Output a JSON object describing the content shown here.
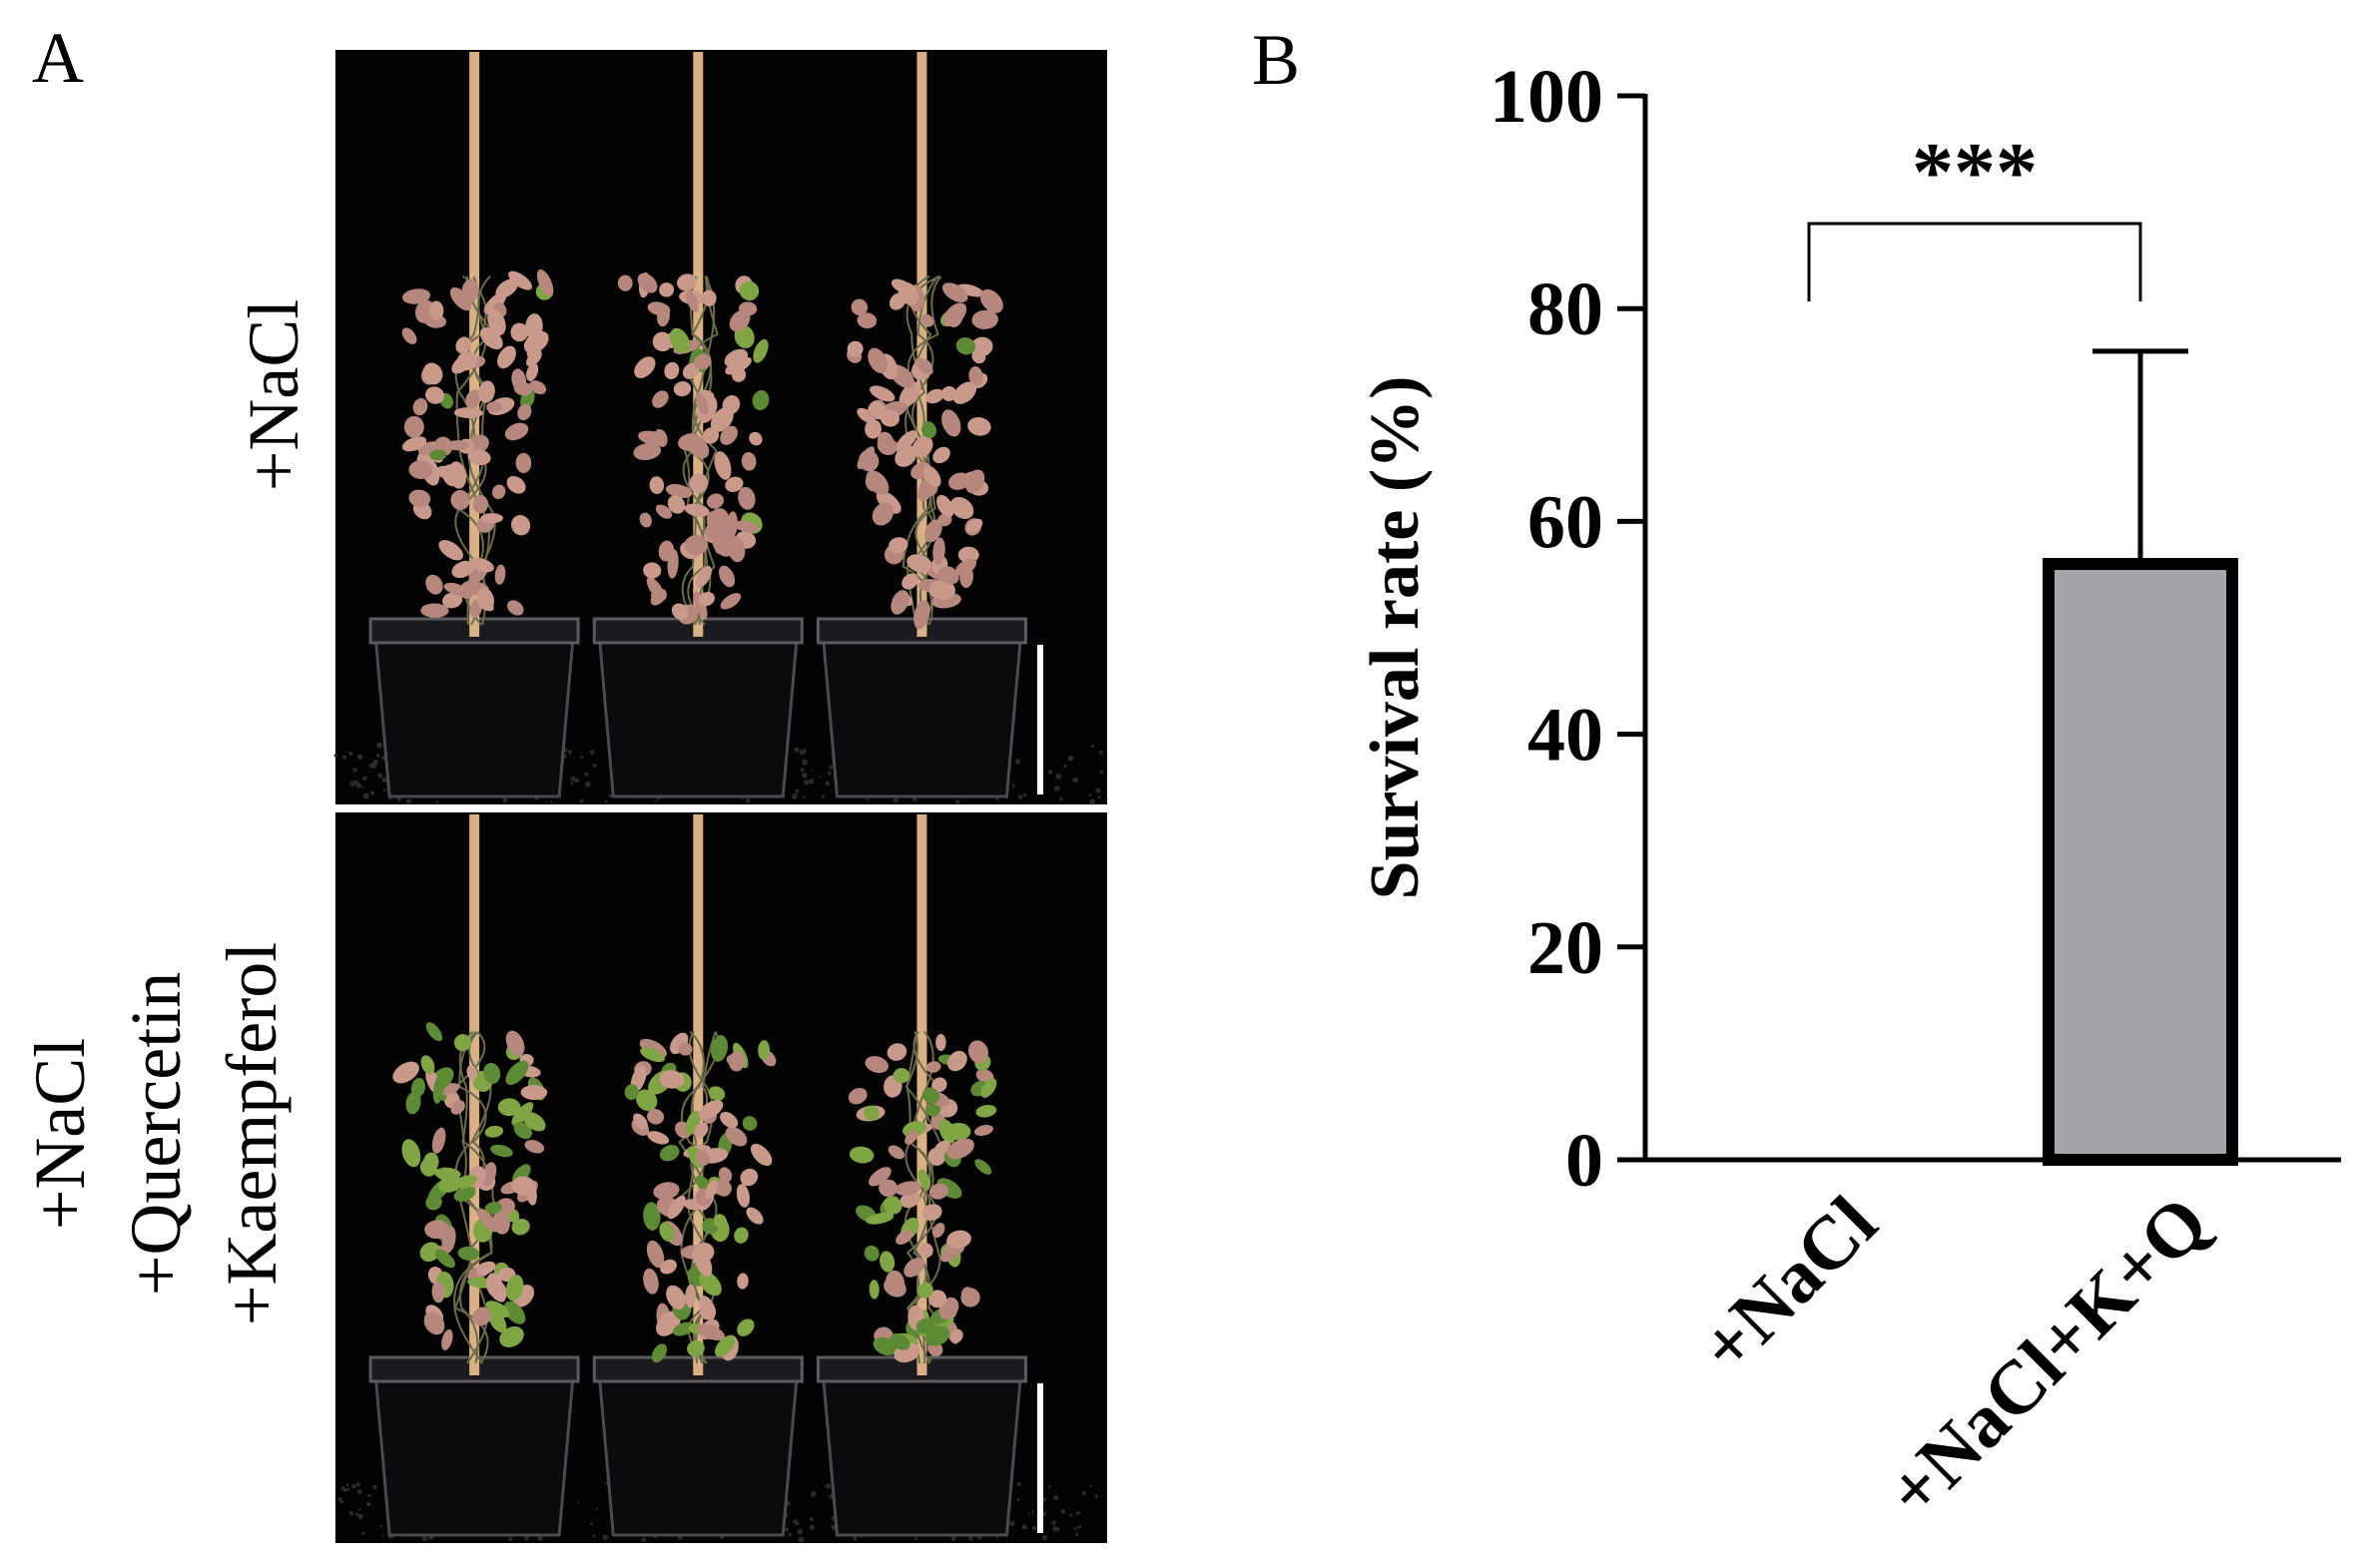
{
  "panels": {
    "a": {
      "label": "A",
      "rows": [
        {
          "lines": [
            "+NaCl"
          ]
        },
        {
          "lines": [
            "+NaCl",
            "+Quercetin",
            "+Kaempferol"
          ]
        }
      ]
    },
    "b": {
      "label": "B"
    }
  },
  "colors": {
    "photo_background": "#030303",
    "stake": "#d9b184",
    "pot": "#0b0b0d",
    "wilted_leaf": "#c99a8c",
    "healthy_leaf": "#5f8a35",
    "bar_fill": "#a5a4a9",
    "bar_edge": "#000000"
  },
  "chart_data": {
    "type": "bar",
    "categories": [
      "+NaCl",
      "+NaCl+K+Q"
    ],
    "values": [
      0,
      56
    ],
    "error_upper": [
      0,
      20
    ],
    "ylabel": "Survival rate (%)",
    "xlabel": "",
    "ylim": [
      0,
      100
    ],
    "yticks": [
      "0",
      "20",
      "40",
      "60",
      "80",
      "100"
    ],
    "significance": {
      "text": "***",
      "between": [
        0,
        1
      ]
    },
    "grid": false,
    "legend": "none"
  }
}
